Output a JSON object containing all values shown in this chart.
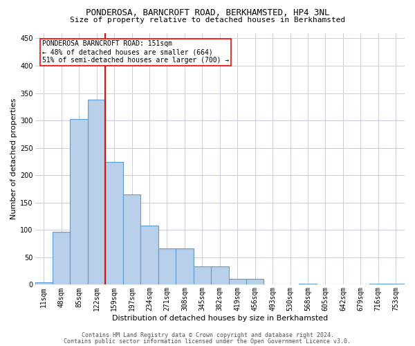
{
  "title": "PONDEROSA, BARNCROFT ROAD, BERKHAMSTED, HP4 3NL",
  "subtitle": "Size of property relative to detached houses in Berkhamsted",
  "xlabel": "Distribution of detached houses by size in Berkhamsted",
  "ylabel": "Number of detached properties",
  "bar_labels": [
    "11sqm",
    "48sqm",
    "85sqm",
    "122sqm",
    "159sqm",
    "197sqm",
    "234sqm",
    "271sqm",
    "308sqm",
    "345sqm",
    "382sqm",
    "419sqm",
    "456sqm",
    "493sqm",
    "530sqm",
    "568sqm",
    "605sqm",
    "642sqm",
    "679sqm",
    "716sqm",
    "753sqm"
  ],
  "bar_values": [
    4,
    97,
    303,
    338,
    224,
    165,
    108,
    66,
    66,
    33,
    33,
    11,
    11,
    0,
    0,
    2,
    0,
    0,
    0,
    2,
    2
  ],
  "bar_color": "#b8d0ea",
  "bar_edge_color": "#5b9bd5",
  "vline_color": "red",
  "ylim": [
    0,
    460
  ],
  "yticks": [
    0,
    50,
    100,
    150,
    200,
    250,
    300,
    350,
    400,
    450
  ],
  "property_line_label": "PONDEROSA BARNCROFT ROAD: 151sqm",
  "annotation_line1": "← 48% of detached houses are smaller (664)",
  "annotation_line2": "51% of semi-detached houses are larger (700) →",
  "footnote1": "Contains HM Land Registry data © Crown copyright and database right 2024.",
  "footnote2": "Contains public sector information licensed under the Open Government Licence v3.0.",
  "background_color": "#ffffff",
  "grid_color": "#c8d0dc",
  "title_fontsize": 9,
  "subtitle_fontsize": 8,
  "ylabel_fontsize": 8,
  "xlabel_fontsize": 8,
  "tick_fontsize": 7,
  "annot_fontsize": 7,
  "footnote_fontsize": 6
}
